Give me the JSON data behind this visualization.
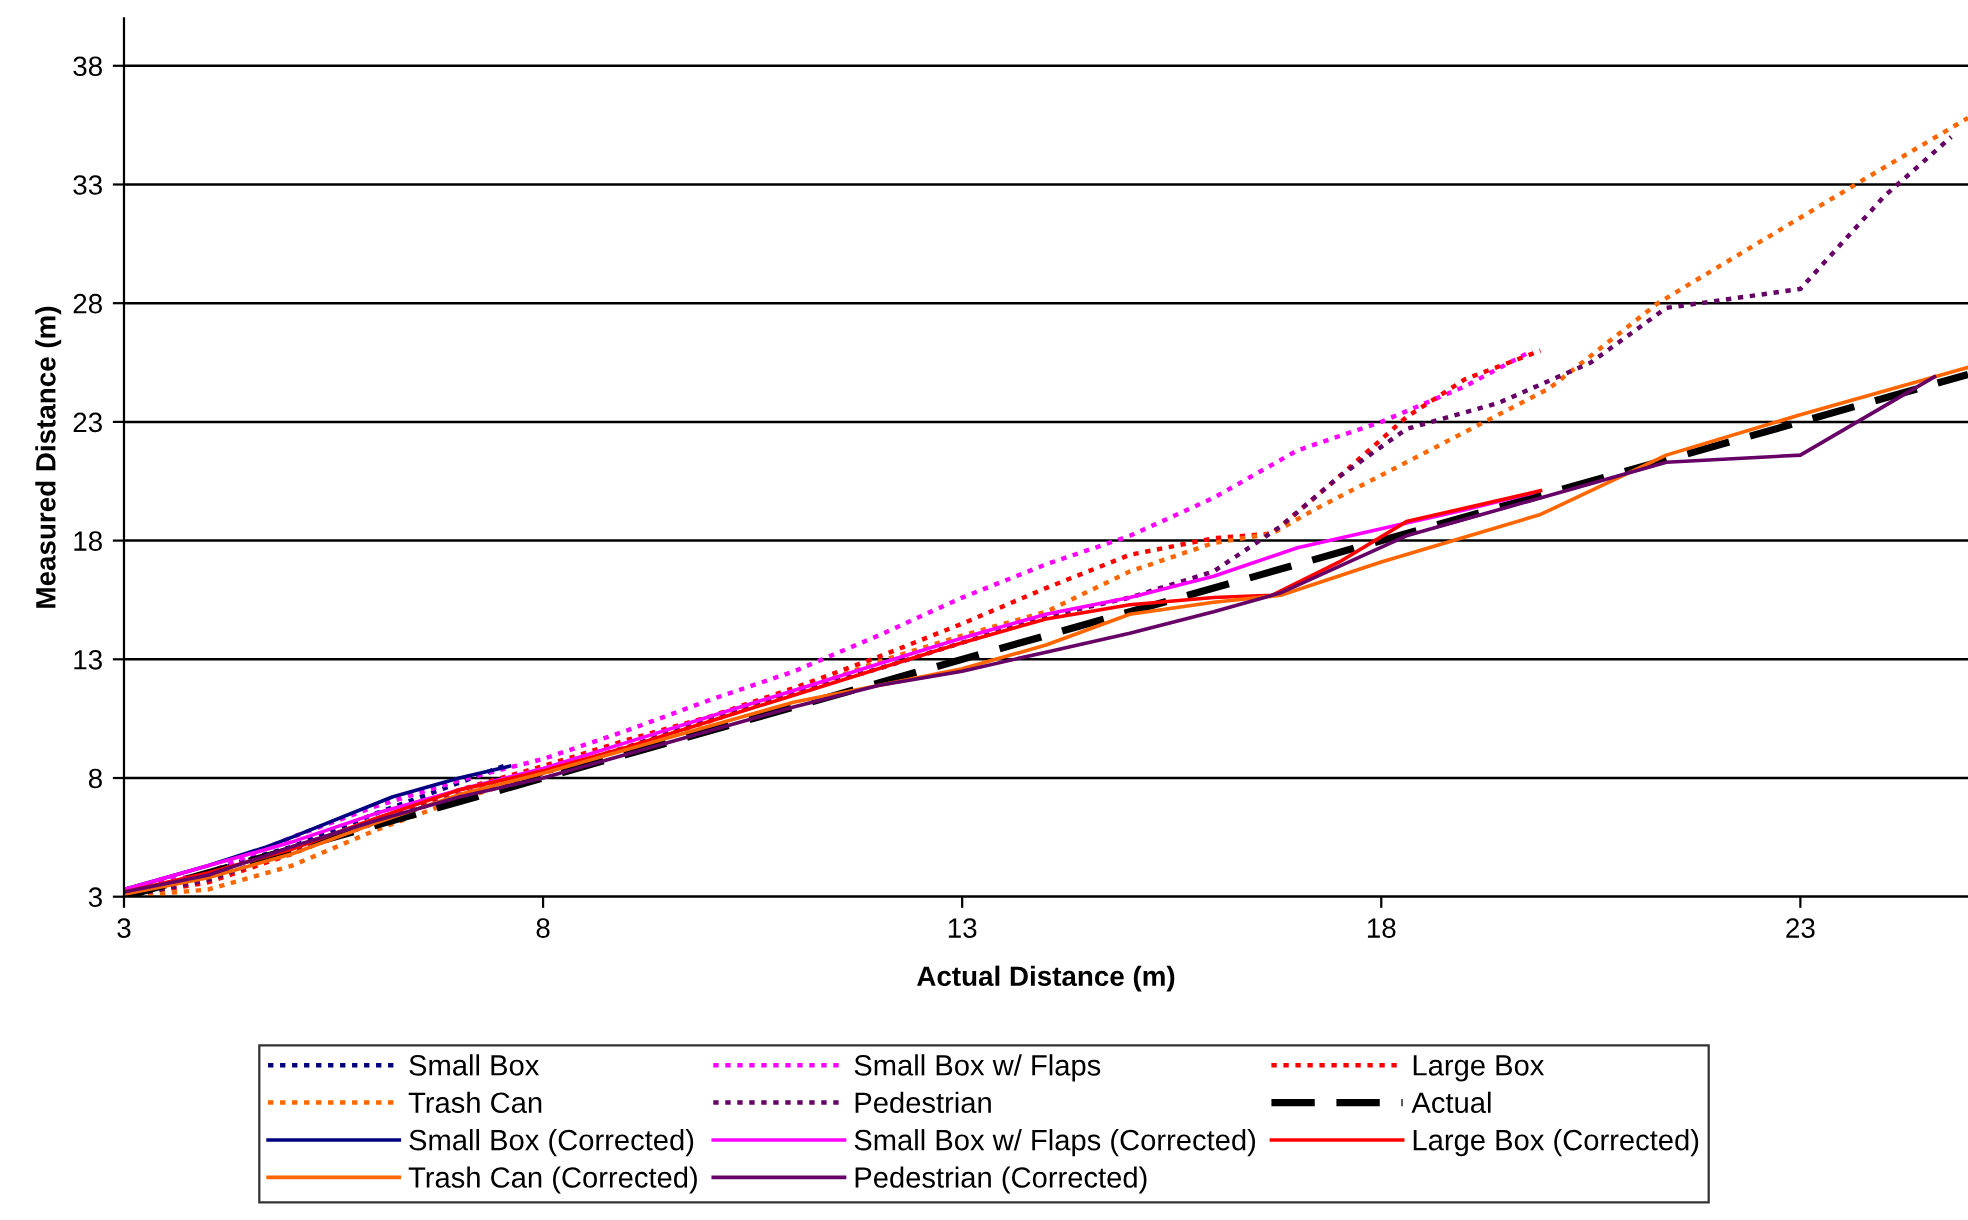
{
  "chart_data": {
    "type": "line",
    "xlabel": "Actual Distance (m)",
    "ylabel": "Measured Distance (m)",
    "xlim": [
      3,
      25
    ],
    "ylim": [
      3,
      40
    ],
    "xticks": [
      3,
      8,
      13,
      18,
      23
    ],
    "yticks": [
      3,
      8,
      13,
      18,
      23,
      28,
      33,
      38
    ],
    "grid": "y",
    "legend": "bottom",
    "series": [
      {
        "name": "Small Box",
        "color": "#000080",
        "line_style": "dotted",
        "x": [
          3,
          4,
          4.5,
          5,
          6,
          7,
          7.6
        ],
        "values": [
          3.1,
          4.0,
          4.6,
          5.1,
          6.5,
          7.8,
          8.6
        ]
      },
      {
        "name": "Small Box w/ Flaps",
        "color": "#ff00ff",
        "line_style": "dotted",
        "x": [
          3,
          4,
          5,
          6,
          7,
          8,
          9,
          10,
          11,
          12,
          13,
          14,
          15,
          16,
          17,
          18,
          19,
          19.8
        ],
        "values": [
          3.3,
          4.0,
          5.5,
          6.8,
          7.9,
          8.8,
          10,
          11.3,
          12.5,
          14,
          15.6,
          17,
          18.2,
          19.8,
          21.8,
          23,
          24.5,
          26
        ]
      },
      {
        "name": "Large Box",
        "color": "#ff0000",
        "line_style": "dotted",
        "x": [
          3,
          4,
          5,
          6,
          7,
          8,
          9,
          10,
          11,
          12,
          13,
          14,
          15,
          16,
          16.7,
          17.5,
          18.3,
          19,
          19.9
        ],
        "values": [
          3.0,
          3.6,
          4.8,
          6.2,
          7.5,
          8.5,
          9.6,
          10.6,
          11.8,
          13.1,
          14.5,
          16.0,
          17.4,
          18.1,
          18.3,
          20.7,
          23.2,
          24.8,
          26
        ]
      },
      {
        "name": "Trash Can",
        "color": "#ff6600",
        "line_style": "dotted",
        "x": [
          3,
          4,
          5,
          6,
          7,
          8,
          9,
          10,
          11,
          12,
          13,
          14,
          15,
          16,
          16.7,
          17.2,
          18.3,
          20,
          21.3,
          23.8,
          25
        ],
        "values": [
          3.0,
          3.3,
          4.3,
          5.8,
          7.1,
          8.2,
          9.3,
          10.4,
          11.6,
          12.9,
          14.0,
          15.0,
          16.7,
          17.9,
          18.3,
          19.3,
          21.3,
          24.4,
          28.0,
          33.3,
          35.8
        ]
      },
      {
        "name": "Pedestrian",
        "color": "#660066",
        "line_style": "dotted",
        "x": [
          3,
          4,
          5,
          6,
          7,
          8,
          9,
          10,
          11,
          12,
          13,
          14,
          15,
          16,
          16.8,
          17.5,
          18.3,
          19.4,
          20.5,
          21.4,
          23,
          24,
          24.8
        ],
        "values": [
          3.0,
          3.7,
          4.9,
          6.1,
          7.3,
          8.2,
          9.3,
          10.5,
          11.6,
          12.6,
          13.7,
          14.8,
          15.6,
          16.7,
          18.6,
          20.7,
          22.7,
          23.8,
          25.5,
          27.8,
          28.6,
          32.5,
          35
        ]
      },
      {
        "name": "Actual",
        "color": "#000000",
        "line_style": "dashed",
        "x": [
          3,
          25
        ],
        "values": [
          3,
          25
        ]
      },
      {
        "name": "Small Box (Corrected)",
        "color": "#000080",
        "line_style": "solid",
        "x": [
          3,
          4,
          4.7,
          5,
          6.2,
          7,
          7.6
        ],
        "values": [
          3.3,
          4.3,
          5.1,
          5.5,
          7.2,
          8.0,
          8.5
        ]
      },
      {
        "name": "Small Box w/ Flaps (Corrected)",
        "color": "#ff00ff",
        "line_style": "solid",
        "x": [
          3,
          4,
          5,
          6,
          7,
          8,
          9,
          10,
          11,
          12,
          13,
          14,
          15,
          16,
          17,
          18,
          19,
          19.8
        ],
        "values": [
          3.3,
          4.3,
          5.3,
          6.5,
          7.5,
          8.4,
          9.5,
          10.6,
          11.7,
          12.8,
          13.9,
          14.9,
          15.6,
          16.5,
          17.7,
          18.5,
          19.3,
          20
        ]
      },
      {
        "name": "Large Box (Corrected)",
        "color": "#ff0000",
        "line_style": "solid",
        "x": [
          3,
          4,
          5,
          6,
          7,
          8,
          9,
          10,
          11,
          12,
          13,
          14,
          15,
          16,
          16.7,
          17.5,
          18.3,
          19.9
        ],
        "values": [
          3.2,
          4.0,
          5.0,
          6.3,
          7.5,
          8.3,
          9.3,
          10.4,
          11.5,
          12.6,
          13.7,
          14.7,
          15.3,
          15.6,
          15.7,
          17.1,
          18.8,
          20.1
        ]
      },
      {
        "name": "Trash Can (Corrected)",
        "color": "#ff6600",
        "line_style": "solid",
        "x": [
          3,
          4,
          5,
          6,
          7,
          8,
          9,
          10,
          11,
          12,
          13,
          14,
          15,
          16,
          16.8,
          18,
          19.9,
          21.4,
          23,
          25
        ],
        "values": [
          3.1,
          3.8,
          4.8,
          6.1,
          7.3,
          8.2,
          9.2,
          10.2,
          11.2,
          11.9,
          12.6,
          13.6,
          14.9,
          15.4,
          15.7,
          17.1,
          19.1,
          21.6,
          23.3,
          25.3
        ]
      },
      {
        "name": "Pedestrian (Corrected)",
        "color": "#660066",
        "line_style": "solid",
        "x": [
          3,
          4,
          5,
          6,
          7,
          8,
          9,
          10,
          11,
          12,
          13,
          14,
          15,
          16,
          16.8,
          18.3,
          21.4,
          23,
          24.6
        ],
        "values": [
          3.2,
          3.9,
          5.1,
          6.2,
          7.2,
          8.0,
          9.0,
          10.0,
          11.0,
          11.9,
          12.5,
          13.3,
          14.1,
          15.0,
          15.8,
          18.2,
          21.3,
          21.6,
          24.9
        ]
      }
    ]
  }
}
